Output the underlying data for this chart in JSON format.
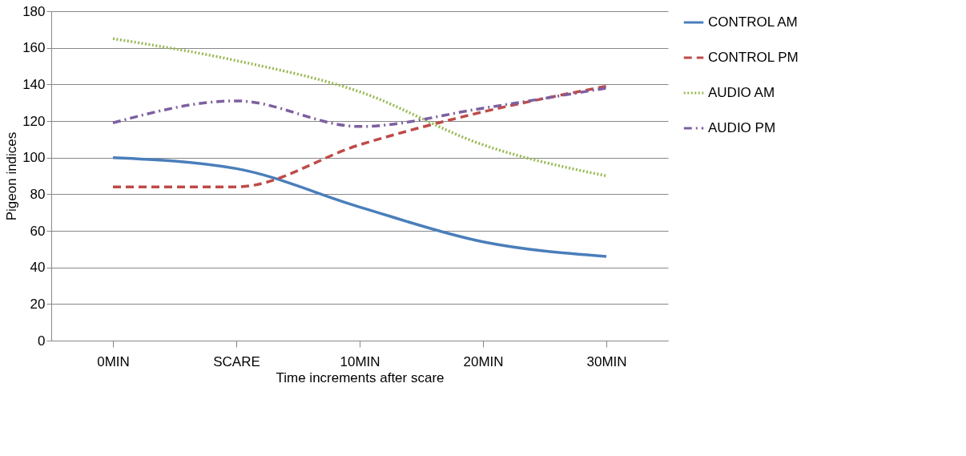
{
  "chart_data": {
    "type": "line",
    "xlabel": "Time increments after scare",
    "ylabel": "Pigeon indices",
    "categories": [
      "0MIN",
      "SCARE",
      "10MIN",
      "20MIN",
      "30MIN"
    ],
    "series": [
      {
        "name": "CONTROL AM",
        "color": "#4a7ebb",
        "line_style": "solid",
        "values": [
          100,
          94,
          73,
          54,
          46
        ]
      },
      {
        "name": "CONTROL PM",
        "color": "#be4b48",
        "line_style": "dashed",
        "values": [
          84,
          84,
          107,
          125,
          139
        ]
      },
      {
        "name": "AUDIO AM",
        "color": "#98b954",
        "line_style": "dotted",
        "values": [
          165,
          153,
          136,
          107,
          90
        ]
      },
      {
        "name": "AUDIO PM",
        "color": "#7d60a0",
        "line_style": "dashdot",
        "values": [
          119,
          131,
          117,
          127,
          138
        ]
      }
    ],
    "ylim": [
      0,
      180
    ],
    "yticks": [
      0,
      20,
      40,
      60,
      80,
      100,
      120,
      140,
      160,
      180
    ],
    "grid": "y",
    "legend": "right",
    "marker": "none"
  }
}
